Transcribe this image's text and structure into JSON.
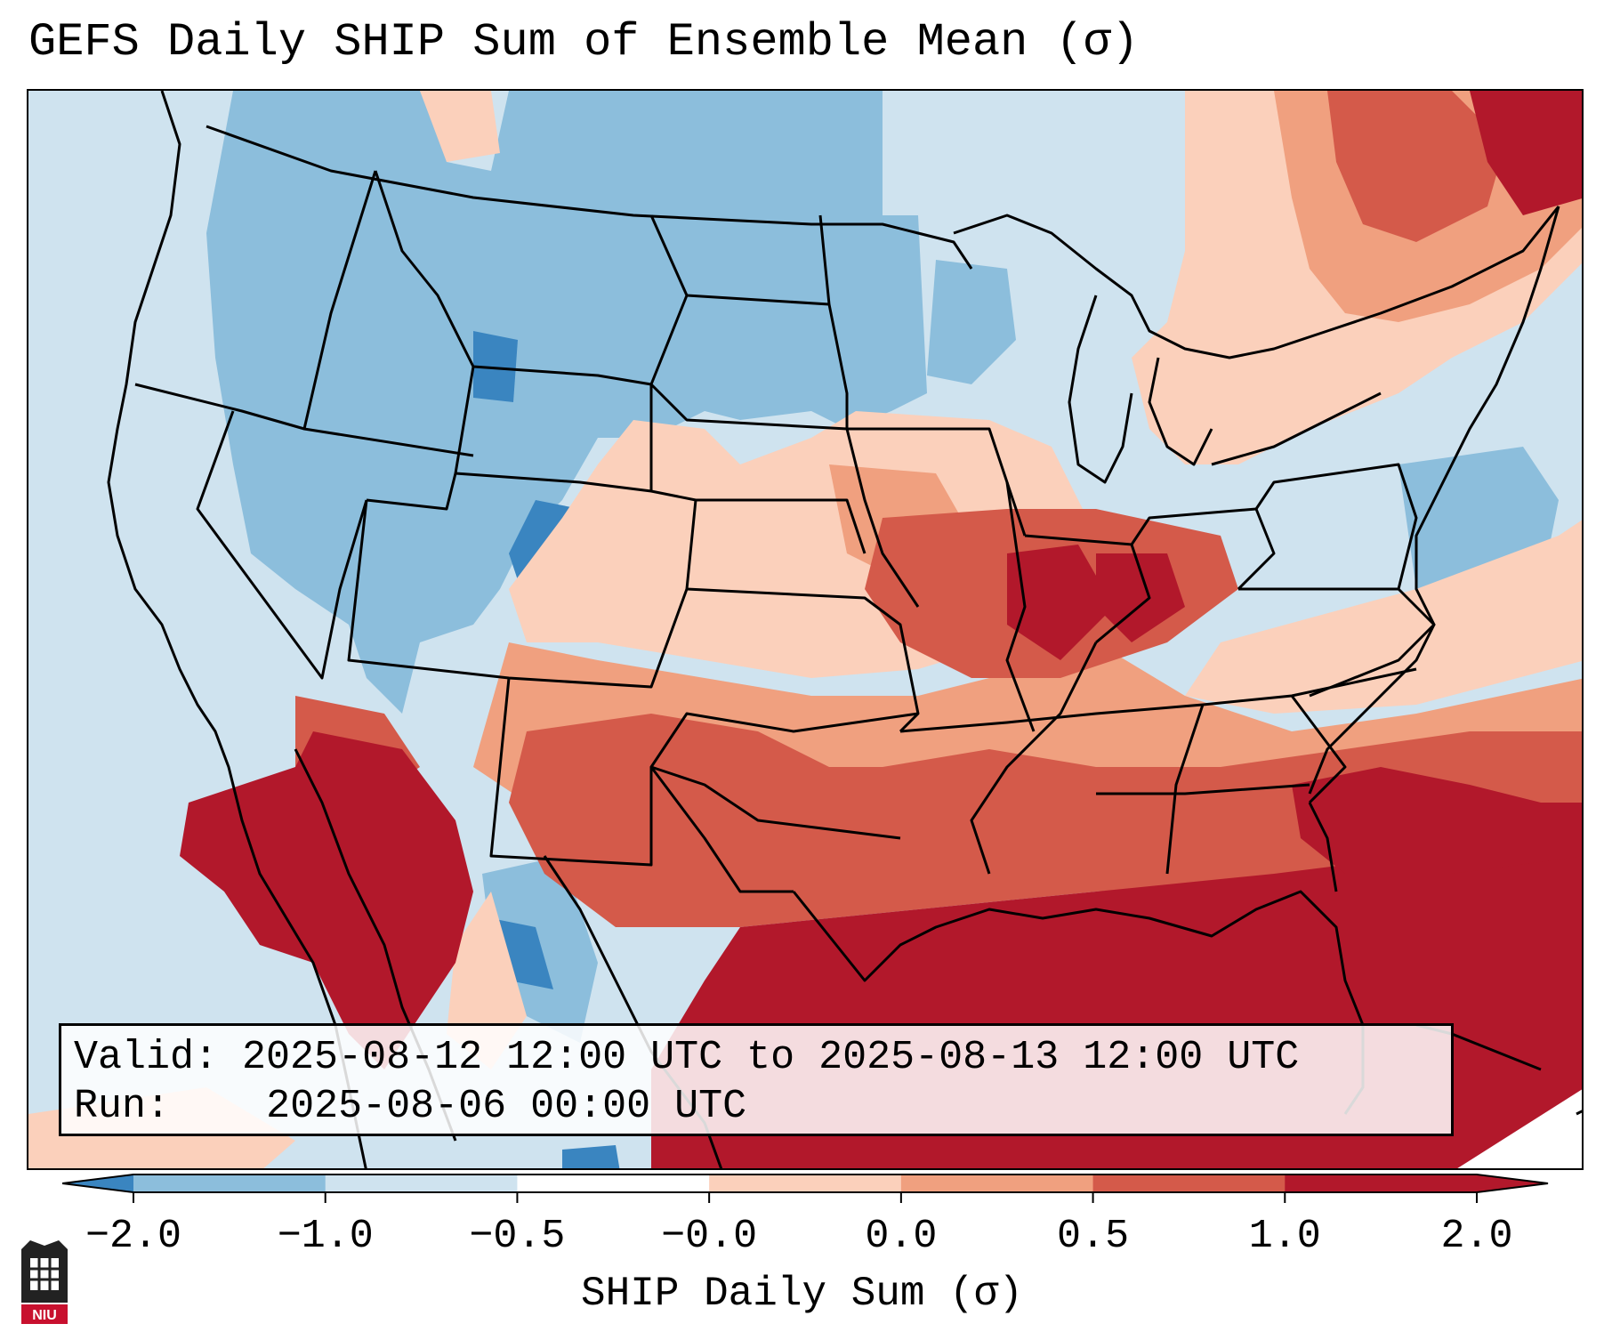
{
  "title": "GEFS Daily SHIP Sum of Ensemble Mean (σ)",
  "info": {
    "valid_label": "Valid:",
    "valid_value": "2025-08-12 12:00 UTC to 2025-08-13 12:00 UTC",
    "run_label": "Run:",
    "run_value": "2025-08-06 00:00 UTC"
  },
  "colorbar": {
    "label": "SHIP Daily Sum (σ)",
    "ticks": [
      "−2.0",
      "−1.0",
      "−0.5",
      "−0.0",
      "0.0",
      "0.5",
      "1.0",
      "2.0"
    ],
    "colors": [
      "#3a85c0",
      "#8cbedc",
      "#cfe3ef",
      "#ffffff",
      "#fbd0bb",
      "#f0a07f",
      "#d45a4a",
      "#b2182b"
    ]
  },
  "logo": {
    "text": "NIU"
  }
}
